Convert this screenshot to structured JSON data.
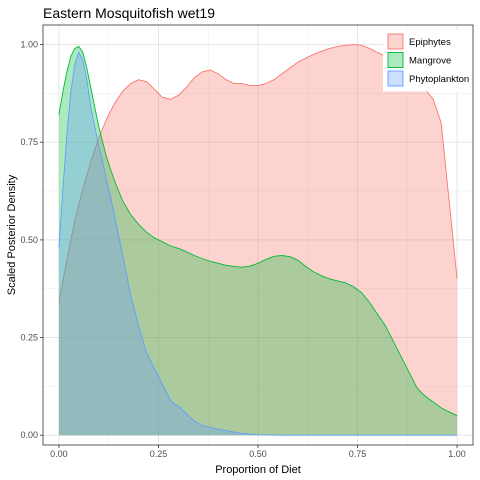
{
  "chart_data": {
    "type": "area",
    "title": "Eastern Mosquitofish wet19",
    "xlabel": "Proportion of Diet",
    "ylabel": "Scaled Posterior Density",
    "xlim": [
      -0.04,
      1.04
    ],
    "ylim": [
      -0.025,
      1.05
    ],
    "x_ticks": [
      0,
      0.25,
      0.5,
      0.75,
      1
    ],
    "x_tick_labels": [
      "0.00",
      "0.25",
      "0.50",
      "0.75",
      "1.00"
    ],
    "y_ticks": [
      0,
      0.25,
      0.5,
      0.75,
      1
    ],
    "y_tick_labels": [
      "0.00",
      "0.25",
      "0.50",
      "0.75",
      "1.00"
    ],
    "grid": true,
    "legend_position": "top-right",
    "series": [
      {
        "name": "Epiphytes",
        "fill": "#F8766D",
        "stroke": "#F8766D",
        "points": [
          [
            0,
            0.34
          ],
          [
            0.02,
            0.45
          ],
          [
            0.04,
            0.55
          ],
          [
            0.06,
            0.63
          ],
          [
            0.08,
            0.7
          ],
          [
            0.1,
            0.76
          ],
          [
            0.12,
            0.81
          ],
          [
            0.14,
            0.85
          ],
          [
            0.16,
            0.88
          ],
          [
            0.18,
            0.9
          ],
          [
            0.2,
            0.91
          ],
          [
            0.22,
            0.905
          ],
          [
            0.24,
            0.885
          ],
          [
            0.26,
            0.865
          ],
          [
            0.28,
            0.86
          ],
          [
            0.3,
            0.87
          ],
          [
            0.32,
            0.89
          ],
          [
            0.34,
            0.915
          ],
          [
            0.36,
            0.93
          ],
          [
            0.38,
            0.935
          ],
          [
            0.4,
            0.925
          ],
          [
            0.42,
            0.91
          ],
          [
            0.44,
            0.9
          ],
          [
            0.46,
            0.9
          ],
          [
            0.48,
            0.895
          ],
          [
            0.5,
            0.895
          ],
          [
            0.52,
            0.9
          ],
          [
            0.54,
            0.91
          ],
          [
            0.56,
            0.925
          ],
          [
            0.58,
            0.94
          ],
          [
            0.6,
            0.955
          ],
          [
            0.62,
            0.965
          ],
          [
            0.64,
            0.975
          ],
          [
            0.66,
            0.983
          ],
          [
            0.68,
            0.99
          ],
          [
            0.7,
            0.995
          ],
          [
            0.72,
            0.998
          ],
          [
            0.74,
            1.0
          ],
          [
            0.76,
            0.998
          ],
          [
            0.78,
            0.99
          ],
          [
            0.8,
            0.98
          ],
          [
            0.82,
            0.97
          ],
          [
            0.84,
            0.955
          ],
          [
            0.86,
            0.93
          ],
          [
            0.88,
            0.905
          ],
          [
            0.9,
            0.895
          ],
          [
            0.92,
            0.885
          ],
          [
            0.94,
            0.86
          ],
          [
            0.96,
            0.8
          ],
          [
            0.98,
            0.6
          ],
          [
            1.0,
            0.4
          ]
        ]
      },
      {
        "name": "Mangrove",
        "fill": "#00BA38",
        "stroke": "#00BA38",
        "points": [
          [
            0,
            0.82
          ],
          [
            0.01,
            0.88
          ],
          [
            0.02,
            0.93
          ],
          [
            0.03,
            0.97
          ],
          [
            0.04,
            0.99
          ],
          [
            0.05,
            0.995
          ],
          [
            0.06,
            0.98
          ],
          [
            0.07,
            0.94
          ],
          [
            0.08,
            0.89
          ],
          [
            0.09,
            0.84
          ],
          [
            0.1,
            0.79
          ],
          [
            0.12,
            0.71
          ],
          [
            0.14,
            0.65
          ],
          [
            0.16,
            0.6
          ],
          [
            0.18,
            0.565
          ],
          [
            0.2,
            0.54
          ],
          [
            0.22,
            0.52
          ],
          [
            0.24,
            0.505
          ],
          [
            0.26,
            0.495
          ],
          [
            0.28,
            0.485
          ],
          [
            0.3,
            0.478
          ],
          [
            0.32,
            0.47
          ],
          [
            0.34,
            0.46
          ],
          [
            0.36,
            0.452
          ],
          [
            0.38,
            0.445
          ],
          [
            0.4,
            0.44
          ],
          [
            0.42,
            0.435
          ],
          [
            0.44,
            0.432
          ],
          [
            0.46,
            0.43
          ],
          [
            0.48,
            0.433
          ],
          [
            0.5,
            0.44
          ],
          [
            0.52,
            0.45
          ],
          [
            0.54,
            0.458
          ],
          [
            0.56,
            0.46
          ],
          [
            0.58,
            0.457
          ],
          [
            0.6,
            0.448
          ],
          [
            0.62,
            0.432
          ],
          [
            0.64,
            0.418
          ],
          [
            0.66,
            0.408
          ],
          [
            0.68,
            0.4
          ],
          [
            0.7,
            0.395
          ],
          [
            0.72,
            0.39
          ],
          [
            0.74,
            0.38
          ],
          [
            0.76,
            0.365
          ],
          [
            0.78,
            0.34
          ],
          [
            0.8,
            0.31
          ],
          [
            0.82,
            0.28
          ],
          [
            0.84,
            0.24
          ],
          [
            0.86,
            0.2
          ],
          [
            0.88,
            0.16
          ],
          [
            0.9,
            0.12
          ],
          [
            0.92,
            0.1
          ],
          [
            0.94,
            0.085
          ],
          [
            0.96,
            0.07
          ],
          [
            0.98,
            0.06
          ],
          [
            1.0,
            0.05
          ]
        ]
      },
      {
        "name": "Phytoplankton",
        "fill": "#619CFF",
        "stroke": "#619CFF",
        "points": [
          [
            0,
            0.48
          ],
          [
            0.01,
            0.63
          ],
          [
            0.02,
            0.77
          ],
          [
            0.03,
            0.88
          ],
          [
            0.04,
            0.95
          ],
          [
            0.05,
            0.98
          ],
          [
            0.06,
            0.96
          ],
          [
            0.07,
            0.91
          ],
          [
            0.08,
            0.84
          ],
          [
            0.09,
            0.79
          ],
          [
            0.1,
            0.74
          ],
          [
            0.11,
            0.7
          ],
          [
            0.12,
            0.65
          ],
          [
            0.13,
            0.61
          ],
          [
            0.14,
            0.56
          ],
          [
            0.15,
            0.51
          ],
          [
            0.16,
            0.46
          ],
          [
            0.17,
            0.41
          ],
          [
            0.18,
            0.36
          ],
          [
            0.19,
            0.32
          ],
          [
            0.2,
            0.28
          ],
          [
            0.21,
            0.245
          ],
          [
            0.22,
            0.21
          ],
          [
            0.23,
            0.19
          ],
          [
            0.24,
            0.17
          ],
          [
            0.25,
            0.15
          ],
          [
            0.26,
            0.13
          ],
          [
            0.27,
            0.11
          ],
          [
            0.28,
            0.09
          ],
          [
            0.29,
            0.08
          ],
          [
            0.3,
            0.074
          ],
          [
            0.31,
            0.065
          ],
          [
            0.32,
            0.055
          ],
          [
            0.33,
            0.045
          ],
          [
            0.34,
            0.037
          ],
          [
            0.35,
            0.03
          ],
          [
            0.36,
            0.025
          ],
          [
            0.38,
            0.02
          ],
          [
            0.4,
            0.015
          ],
          [
            0.42,
            0.012
          ],
          [
            0.44,
            0.008
          ],
          [
            0.46,
            0.005
          ],
          [
            0.48,
            0.003
          ],
          [
            0.5,
            0.001
          ],
          [
            0.55,
            0.0
          ],
          [
            1.0,
            0.0
          ]
        ]
      }
    ]
  }
}
